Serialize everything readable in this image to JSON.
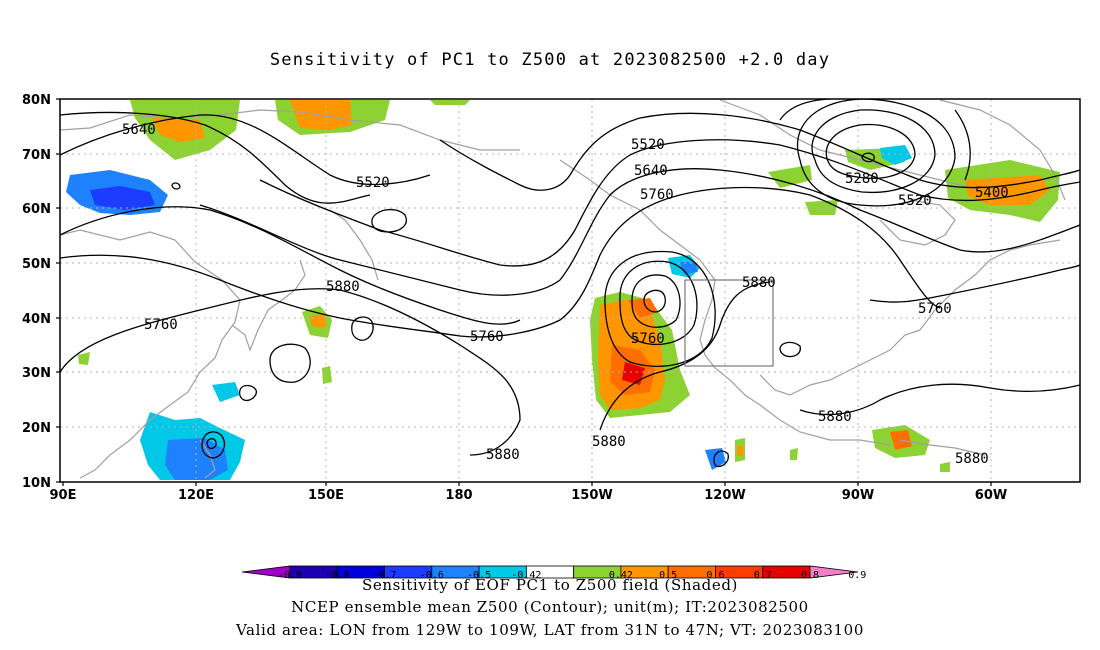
{
  "title": "Sensitivity of PC1 to Z500 at 2023082500 +2.0 day",
  "lat_ticks": [
    "80N",
    "70N",
    "60N",
    "50N",
    "40N",
    "30N",
    "20N",
    "10N"
  ],
  "lon_ticks": [
    "90E",
    "120E",
    "150E",
    "180",
    "150W",
    "120W",
    "90W",
    "60W"
  ],
  "contour_labels": [
    "5640",
    "5520",
    "5520",
    "5640",
    "5760",
    "5280",
    "5520",
    "5400",
    "5880",
    "5880",
    "5760",
    "5760",
    "5760",
    "5760",
    "5880",
    "5880",
    "5880",
    "5880"
  ],
  "colorbar": {
    "ticks": [
      "-0.9",
      "-0.8",
      "-0.7",
      "-0.6",
      "-0.5",
      "-0.42",
      "0.42",
      "0.5",
      "0.6",
      "0.7",
      "0.8",
      "0.9"
    ],
    "colors": [
      "#a000c8",
      "#1e00b4",
      "#0000dc",
      "#1c3cff",
      "#1e82ff",
      "#00c8e6",
      "#ffffff",
      "#8cd232",
      "#ff9600",
      "#ff6e00",
      "#ff3c00",
      "#e60000",
      "#f080c8"
    ]
  },
  "box_region": "LON 129W to 109W, LAT 31N to 47N",
  "captions": {
    "line1": "Sensitivity of EOF PC1 to Z500 field (Shaded)",
    "line2": "NCEP ensemble mean Z500 (Contour); unit(m); IT:2023082500",
    "line3": "Valid area: LON from 129W to 109W, LAT from 31N to 47N; VT: 2023083100"
  }
}
